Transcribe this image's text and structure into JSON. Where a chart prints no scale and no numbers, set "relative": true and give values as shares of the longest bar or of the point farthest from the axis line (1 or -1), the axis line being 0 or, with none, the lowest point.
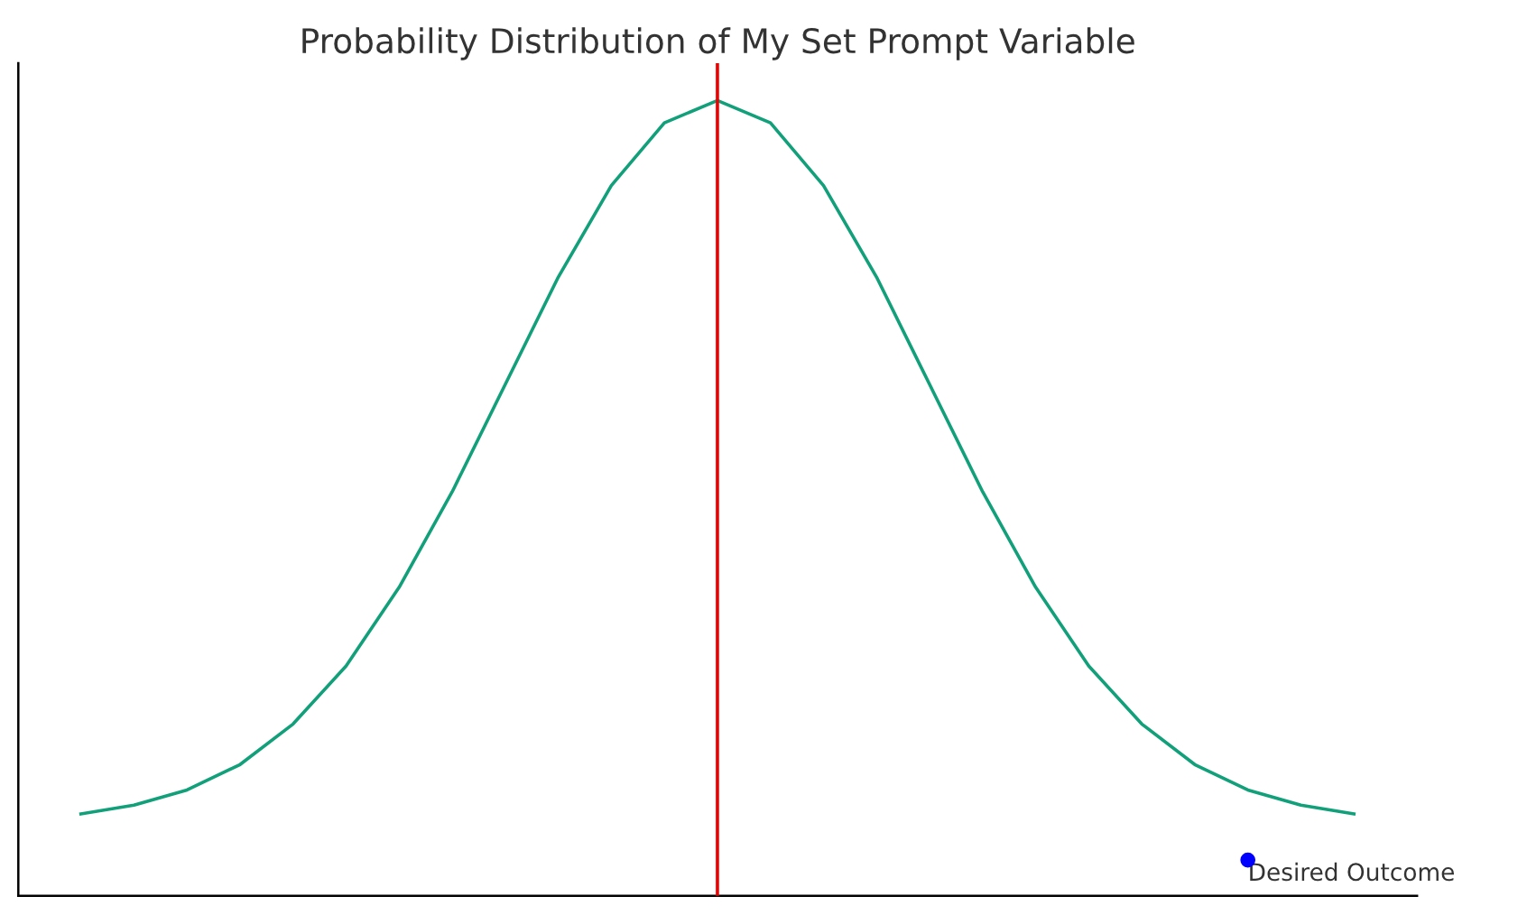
{
  "chart_data": {
    "type": "line",
    "title": "Probability Distribution of My Set Prompt Variable",
    "relative": true,
    "categories": [
      null,
      null,
      null,
      null,
      null,
      null,
      null,
      null,
      null,
      null,
      null,
      null,
      null,
      null,
      null,
      null,
      null,
      null,
      null,
      null,
      null,
      null,
      null,
      null,
      null
    ],
    "series": [
      {
        "color": "#12a07a",
        "values": [
          0.103,
          0.114,
          0.133,
          0.165,
          0.216,
          0.289,
          0.388,
          0.508,
          0.643,
          0.778,
          0.893,
          0.972,
          1.0,
          0.972,
          0.893,
          0.778,
          0.643,
          0.508,
          0.388,
          0.289,
          0.216,
          0.165,
          0.133,
          0.114,
          0.103
        ]
      },
      {
        "color": "#0000ff",
        "marker": "circle",
        "values": [
          null,
          null,
          null,
          null,
          null,
          null,
          null,
          null,
          null,
          null,
          null,
          null,
          null,
          null,
          null,
          null,
          null,
          null,
          null,
          null,
          null,
          null,
          0.045,
          null,
          null
        ]
      }
    ],
    "annotations": [
      "Desired Outcome"
    ]
  }
}
